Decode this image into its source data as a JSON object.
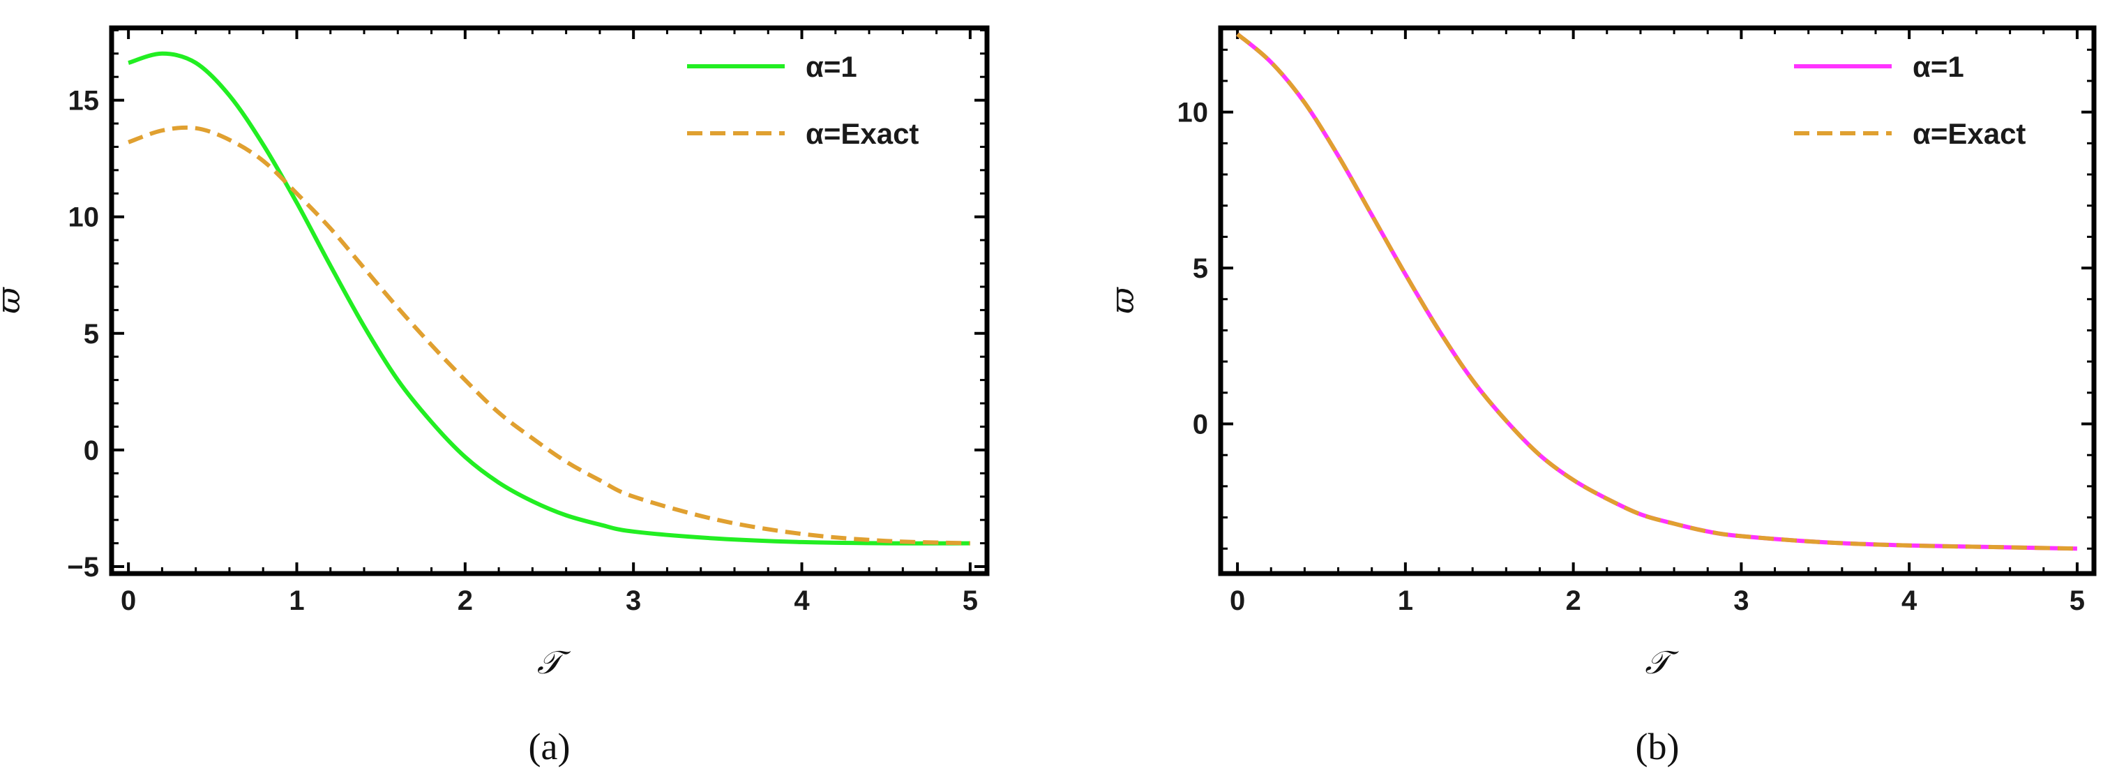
{
  "chart_data": [
    {
      "type": "line",
      "caption": "(a)",
      "xlabel": "𝒯",
      "ylabel": "ϖ",
      "xlim": [
        -0.1,
        5.1
      ],
      "ylim": [
        -5.3,
        18.1
      ],
      "xticks": [
        0,
        1,
        2,
        3,
        4,
        5
      ],
      "yticks": [
        -5,
        0,
        5,
        10,
        15
      ],
      "legend_position": "top-right",
      "series": [
        {
          "name": "α=1",
          "color": "#22ee22",
          "dash": "solid",
          "x": [
            0,
            0.2,
            0.4,
            0.6,
            0.8,
            1.0,
            1.2,
            1.4,
            1.6,
            1.8,
            2.0,
            2.2,
            2.4,
            2.6,
            2.8,
            3.0,
            3.5,
            4.0,
            4.5,
            5.0
          ],
          "y": [
            16.6,
            17.0,
            16.6,
            15.2,
            13.1,
            10.6,
            7.9,
            5.3,
            3.0,
            1.2,
            -0.3,
            -1.4,
            -2.2,
            -2.8,
            -3.2,
            -3.5,
            -3.8,
            -3.95,
            -4.0,
            -4.0
          ]
        },
        {
          "name": "α=Exact",
          "color": "#e0a030",
          "dash": "dashed",
          "x": [
            0,
            0.2,
            0.4,
            0.6,
            0.8,
            1.0,
            1.2,
            1.4,
            1.6,
            1.8,
            2.0,
            2.2,
            2.4,
            2.6,
            2.8,
            3.0,
            3.5,
            4.0,
            4.5,
            5.0
          ],
          "y": [
            13.2,
            13.7,
            13.8,
            13.3,
            12.4,
            11.0,
            9.5,
            7.8,
            6.1,
            4.5,
            3.0,
            1.6,
            0.5,
            -0.5,
            -1.3,
            -2.0,
            -3.0,
            -3.6,
            -3.9,
            -4.0
          ]
        }
      ]
    },
    {
      "type": "line",
      "caption": "(b)",
      "xlabel": "𝒯",
      "ylabel": "ϖ",
      "xlim": [
        -0.1,
        5.1
      ],
      "ylim": [
        -4.8,
        12.7
      ],
      "xticks": [
        0,
        1,
        2,
        3,
        4,
        5
      ],
      "yticks": [
        0,
        5,
        10
      ],
      "legend_position": "top-right",
      "series": [
        {
          "name": "α=1",
          "color": "#ff33ff",
          "dash": "solid",
          "x": [
            0,
            0.2,
            0.4,
            0.6,
            0.8,
            1.0,
            1.2,
            1.4,
            1.6,
            1.8,
            2.0,
            2.2,
            2.4,
            2.6,
            2.8,
            3.0,
            3.5,
            4.0,
            4.5,
            5.0
          ],
          "y": [
            12.5,
            11.6,
            10.3,
            8.6,
            6.7,
            4.8,
            3.0,
            1.4,
            0.1,
            -1.0,
            -1.8,
            -2.4,
            -2.9,
            -3.2,
            -3.45,
            -3.6,
            -3.8,
            -3.9,
            -3.95,
            -4.0
          ]
        },
        {
          "name": "α=Exact",
          "color": "#e0a030",
          "dash": "dashed",
          "x": [
            0,
            0.2,
            0.4,
            0.6,
            0.8,
            1.0,
            1.2,
            1.4,
            1.6,
            1.8,
            2.0,
            2.2,
            2.4,
            2.6,
            2.8,
            3.0,
            3.5,
            4.0,
            4.5,
            5.0
          ],
          "y": [
            12.5,
            11.6,
            10.3,
            8.6,
            6.7,
            4.8,
            3.0,
            1.4,
            0.1,
            -1.0,
            -1.8,
            -2.4,
            -2.9,
            -3.2,
            -3.45,
            -3.6,
            -3.8,
            -3.9,
            -3.95,
            -4.0
          ]
        }
      ]
    }
  ]
}
